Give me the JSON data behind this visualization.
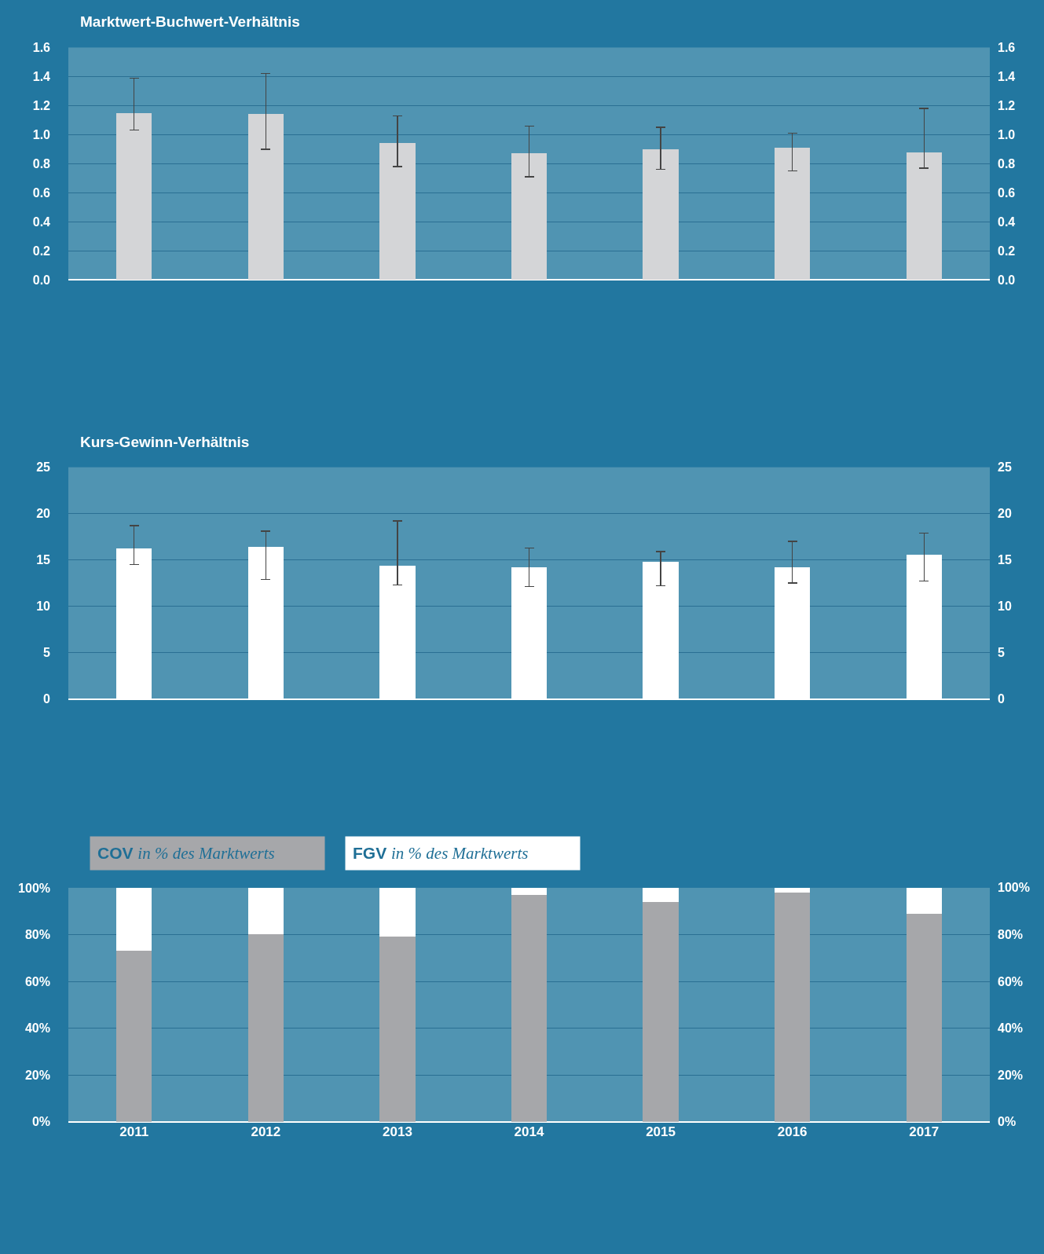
{
  "chart_data": [
    {
      "type": "bar",
      "title": "Marktwert-Buchwert-Verhältnis",
      "categories": [
        "2011",
        "2012",
        "2013",
        "2014",
        "2015",
        "2016",
        "2017"
      ],
      "series": [
        {
          "color": "#d4d5d7",
          "values": [
            1.15,
            1.14,
            0.94,
            0.87,
            0.9,
            0.91,
            0.88
          ],
          "errors": [
            [
              1.03,
              1.39
            ],
            [
              0.9,
              1.42
            ],
            [
              0.78,
              1.13
            ],
            [
              0.71,
              1.06
            ],
            [
              0.76,
              1.05
            ],
            [
              0.75,
              1.01
            ],
            [
              0.77,
              1.18
            ]
          ]
        }
      ],
      "ylim": [
        0,
        1.6
      ],
      "yticks": [
        {
          "value": 0,
          "label": "0.0"
        },
        {
          "value": 0.2,
          "label": "0.2"
        },
        {
          "value": 0.4,
          "label": "0.4"
        },
        {
          "value": 0.6,
          "label": "0.6"
        },
        {
          "value": 0.8,
          "label": "0.8"
        },
        {
          "value": 1,
          "label": "1.0"
        },
        {
          "value": 1.2,
          "label": "1.2"
        },
        {
          "value": 1.4,
          "label": "1.4"
        },
        {
          "value": 1.6,
          "label": "1.6"
        }
      ],
      "y2lim": [
        0,
        1.6
      ],
      "y2ticks": [
        {
          "value": 0,
          "label": "0.0"
        },
        {
          "value": 0.2,
          "label": "0.2"
        },
        {
          "value": 0.4,
          "label": "0.4"
        },
        {
          "value": 0.6,
          "label": "0.6"
        },
        {
          "value": 0.8,
          "label": "0.8"
        },
        {
          "value": 1,
          "label": "1.0"
        },
        {
          "value": 1.2,
          "label": "1.2"
        },
        {
          "value": 1.4,
          "label": "1.4"
        },
        {
          "value": 1.6,
          "label": "1.6"
        }
      ],
      "grid": "y",
      "tick_labels": "y"
    },
    {
      "type": "bar",
      "title": "Kurs-Gewinn-Verhältnis",
      "categories": [
        "2011",
        "2012",
        "2013",
        "2014",
        "2015",
        "2016",
        "2017"
      ],
      "series": [
        {
          "color": "#ffffff",
          "values": [
            16.2,
            16.4,
            14.4,
            14.2,
            14.8,
            14.2,
            15.6
          ],
          "errors": [
            [
              14.5,
              18.7
            ],
            [
              12.9,
              18.1
            ],
            [
              12.3,
              19.2
            ],
            [
              12.1,
              16.3
            ],
            [
              12.2,
              15.9
            ],
            [
              12.5,
              17.0
            ],
            [
              12.7,
              17.9
            ]
          ]
        }
      ],
      "ylim": [
        0,
        25
      ],
      "yticks": [
        0,
        5,
        10,
        15,
        20,
        25
      ],
      "y2lim": [
        0,
        25
      ],
      "y2ticks": [
        0,
        5,
        10,
        15,
        20,
        25
      ],
      "grid": "y",
      "tick_labels": "y"
    },
    {
      "type": "bar",
      "stacked": true,
      "categories": [
        "2011",
        "2012",
        "2013",
        "2014",
        "2015",
        "2016",
        "2017"
      ],
      "series": [
        {
          "name": "COV in % des Marktwerts",
          "color": "#a6a7aa",
          "values": [
            73,
            80,
            79,
            97,
            94,
            98,
            89
          ]
        },
        {
          "name": "FGV in % des Marktwerts",
          "color": "#ffffff",
          "values": [
            27,
            20,
            21,
            3,
            6,
            2,
            11
          ]
        }
      ],
      "ylim": [
        0,
        100
      ],
      "yticks": [
        {
          "value": 0,
          "label": "0%"
        },
        {
          "value": 20,
          "label": "20%"
        },
        {
          "value": 40,
          "label": "40%"
        },
        {
          "value": 60,
          "label": "60%"
        },
        {
          "value": 80,
          "label": "80%"
        },
        {
          "value": 100,
          "label": "100%"
        }
      ],
      "y2lim": [
        0,
        100
      ],
      "y2ticks": [
        {
          "value": 0,
          "label": "0%"
        },
        {
          "value": 20,
          "label": "20%"
        },
        {
          "value": 40,
          "label": "40%"
        },
        {
          "value": 60,
          "label": "60%"
        },
        {
          "value": 80,
          "label": "80%"
        },
        {
          "value": 100,
          "label": "100%"
        }
      ],
      "grid": "y",
      "legend": "top left"
    }
  ]
}
